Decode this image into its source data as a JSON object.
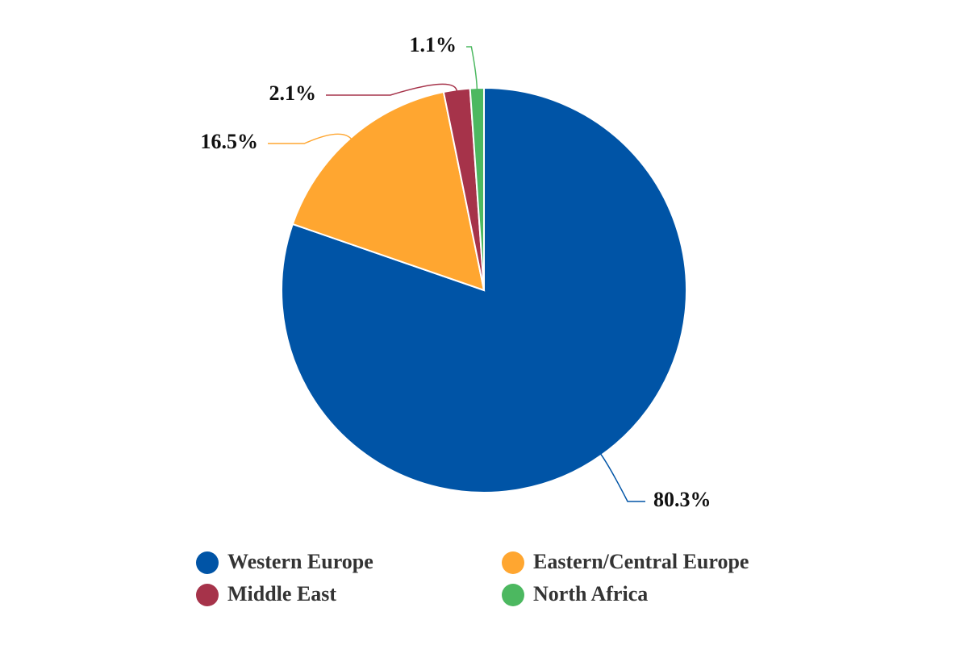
{
  "chart_data": {
    "type": "pie",
    "categories": [
      "Western Europe",
      "Eastern/Central Europe",
      "Middle East",
      "North Africa"
    ],
    "values": [
      80.3,
      16.5,
      2.1,
      1.1
    ],
    "value_labels": [
      "80.3%",
      "16.5%",
      "2.1%",
      "1.1%"
    ],
    "colors": [
      "#0054a6",
      "#ffa630",
      "#a6334a",
      "#4cb860"
    ],
    "legend": "bottom"
  }
}
